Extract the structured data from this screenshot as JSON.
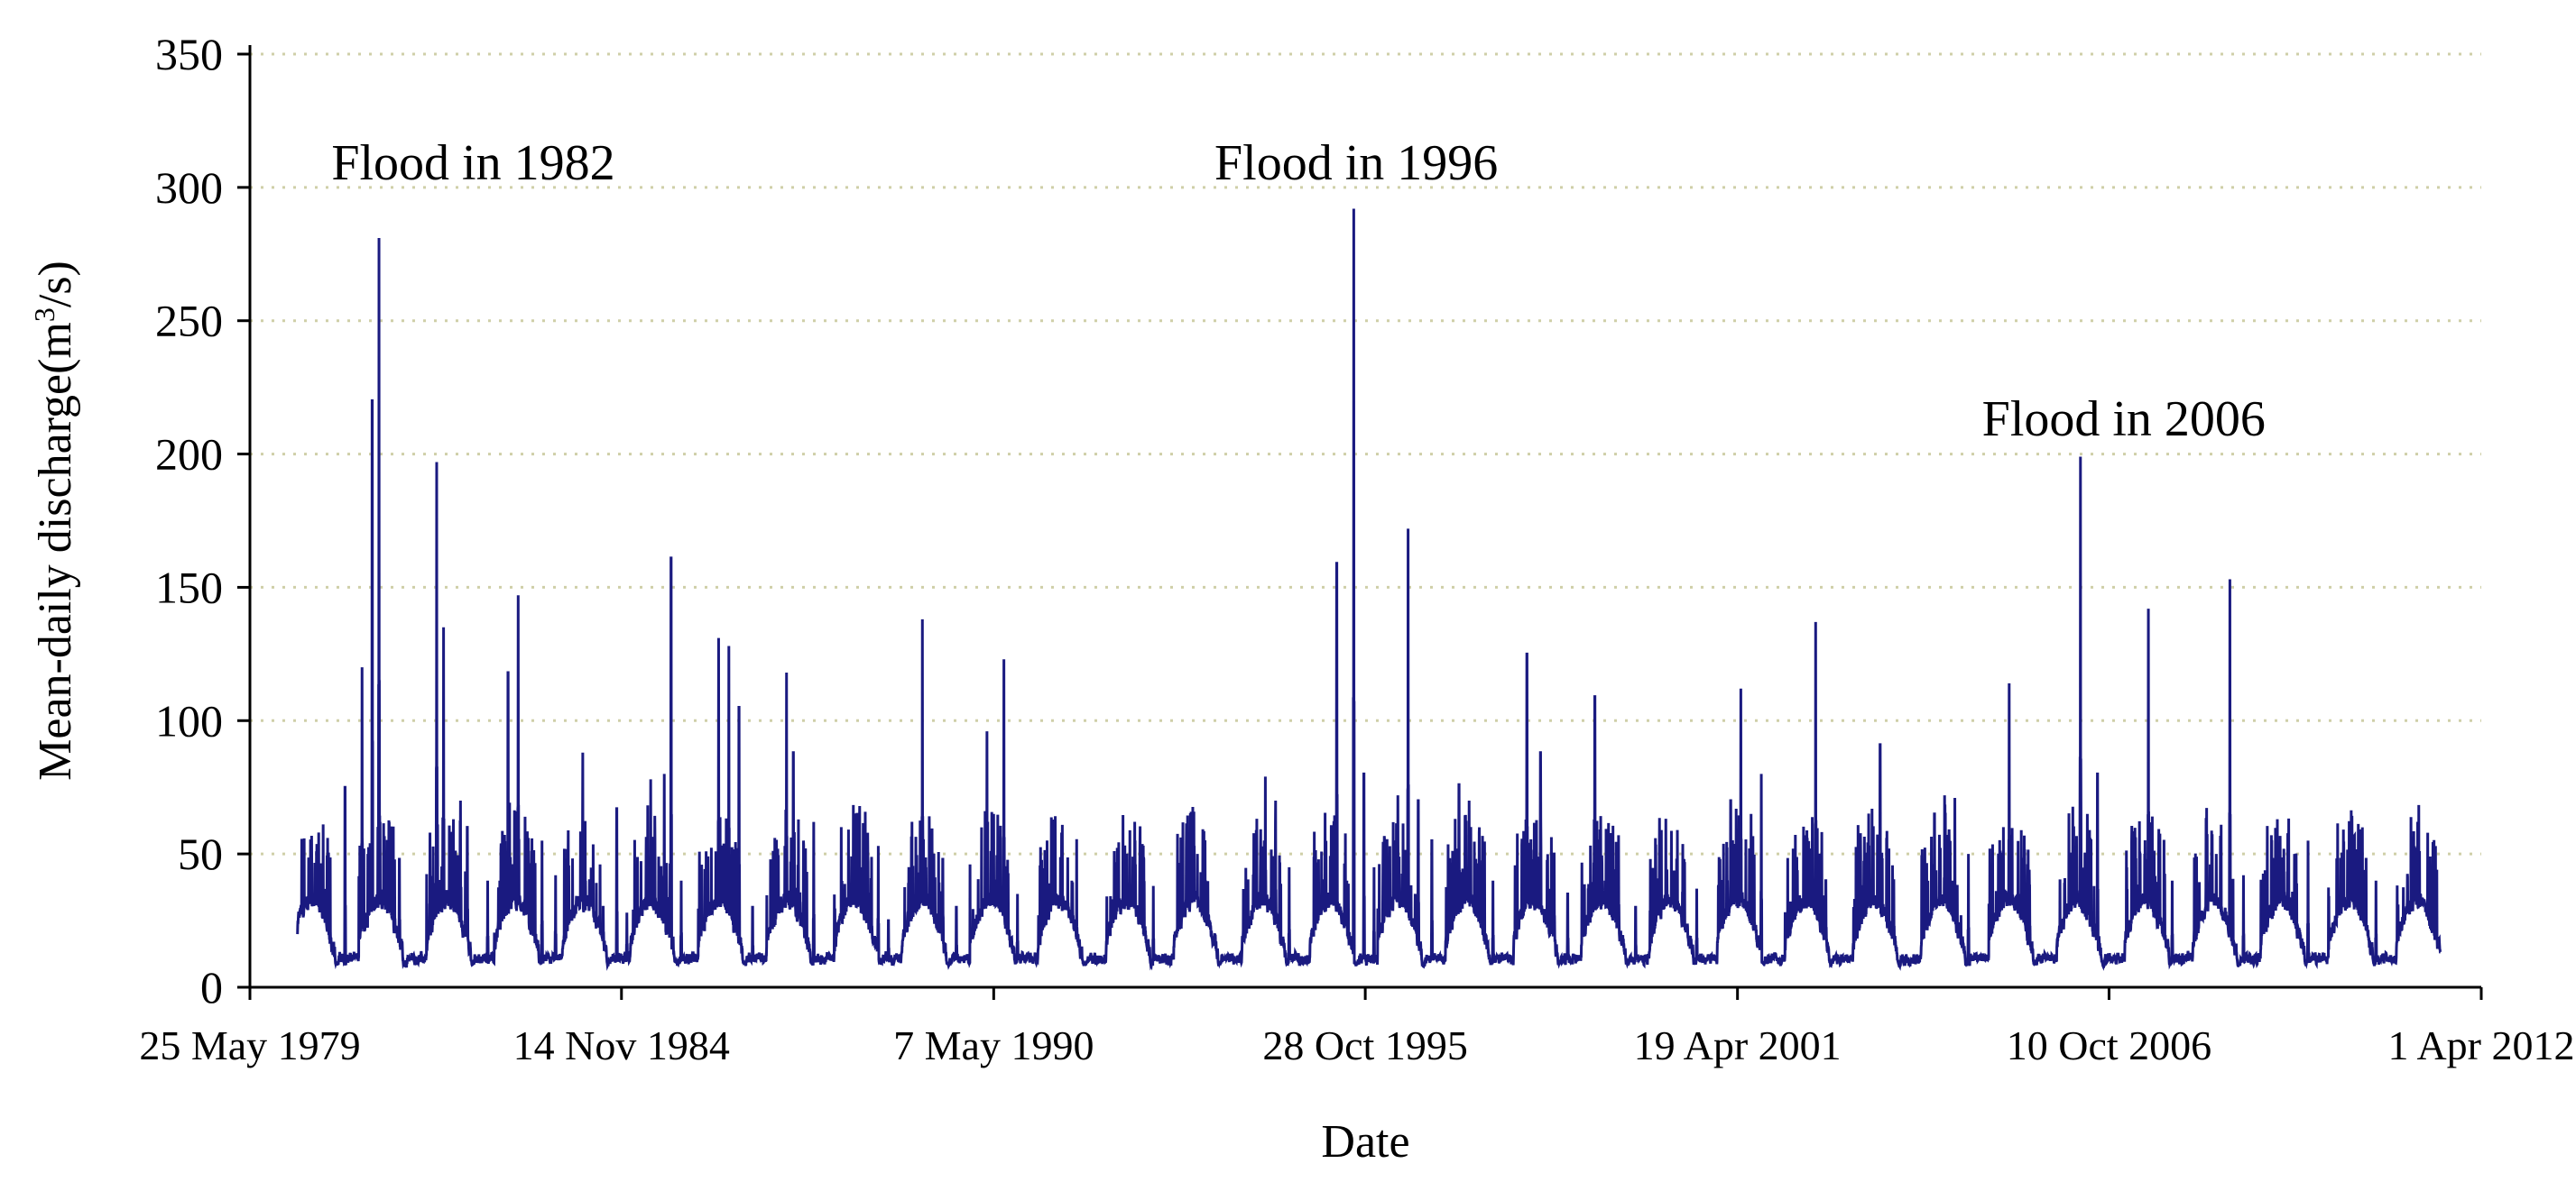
{
  "chart_data": {
    "type": "line",
    "title": "",
    "xlabel": "Date",
    "ylabel": "Mean-daily discharge(m³/s)",
    "ylabel_parts": {
      "main": "Mean-daily discharge(m",
      "sup": "3",
      "end": "/s)"
    },
    "ylim": [
      0,
      350
    ],
    "yticks": [
      0,
      50,
      100,
      150,
      200,
      250,
      300,
      350
    ],
    "xlim_years": [
      1979.4,
      2012.25
    ],
    "xticks": [
      {
        "year": 1979.4,
        "label": "25 May 1979"
      },
      {
        "year": 1984.87,
        "label": "14 Nov 1984"
      },
      {
        "year": 1990.35,
        "label": "7 May 1990"
      },
      {
        "year": 1995.82,
        "label": "28 Oct 1995"
      },
      {
        "year": 2001.3,
        "label": "19 Apr 2001"
      },
      {
        "year": 2006.77,
        "label": "10 Oct 2006"
      },
      {
        "year": 2012.25,
        "label": "1 Apr 2012"
      }
    ],
    "grid": "horizontal dotted",
    "line_color": "#1a1a80",
    "annotations": [
      {
        "text": "Flood in 1982",
        "year": 1980.6,
        "y": 303
      },
      {
        "text": "Flood in 1996",
        "year": 1993.6,
        "y": 303
      },
      {
        "text": "Flood in 2006",
        "year": 2004.9,
        "y": 207
      }
    ],
    "series": [
      {
        "name": "Mean-daily discharge",
        "data_start_year": 1980.1,
        "data_end_year": 2011.65,
        "peaks": [
          [
            1980.5,
            36
          ],
          [
            1980.8,
            75
          ],
          [
            1981.05,
            120
          ],
          [
            1981.2,
            220
          ],
          [
            1981.3,
            281
          ],
          [
            1981.45,
            62
          ],
          [
            1981.6,
            48
          ],
          [
            1982.05,
            58
          ],
          [
            1982.15,
            197
          ],
          [
            1982.25,
            135
          ],
          [
            1982.5,
            70
          ],
          [
            1982.6,
            60
          ],
          [
            1982.9,
            40
          ],
          [
            1983.0,
            20
          ],
          [
            1983.2,
            118
          ],
          [
            1983.35,
            147
          ],
          [
            1983.5,
            56
          ],
          [
            1983.7,
            55
          ],
          [
            1983.9,
            42
          ],
          [
            1984.3,
            88
          ],
          [
            1984.4,
            40
          ],
          [
            1984.6,
            30
          ],
          [
            1984.8,
            67
          ],
          [
            1984.95,
            28
          ],
          [
            1985.3,
            78
          ],
          [
            1985.5,
            80
          ],
          [
            1985.6,
            161
          ],
          [
            1985.75,
            40
          ],
          [
            1986.3,
            131
          ],
          [
            1986.45,
            128
          ],
          [
            1986.6,
            105
          ],
          [
            1986.8,
            30
          ],
          [
            1987.3,
            118
          ],
          [
            1987.4,
            88
          ],
          [
            1987.55,
            55
          ],
          [
            1987.7,
            62
          ],
          [
            1988.3,
            50
          ],
          [
            1988.5,
            47
          ],
          [
            1988.65,
            53
          ],
          [
            1988.8,
            25
          ],
          [
            1989.3,
            138
          ],
          [
            1989.45,
            40
          ],
          [
            1989.6,
            48
          ],
          [
            1989.8,
            30
          ],
          [
            1990.25,
            96
          ],
          [
            1990.35,
            65
          ],
          [
            1990.5,
            123
          ],
          [
            1990.7,
            35
          ],
          [
            1991.2,
            60
          ],
          [
            1991.35,
            58
          ],
          [
            1991.5,
            40
          ],
          [
            1992.1,
            33
          ],
          [
            1992.3,
            30
          ],
          [
            1992.5,
            45
          ],
          [
            1992.7,
            38
          ],
          [
            1993.2,
            40
          ],
          [
            1993.35,
            50
          ],
          [
            1993.5,
            30
          ],
          [
            1994.2,
            48
          ],
          [
            1994.35,
            79
          ],
          [
            1994.5,
            70
          ],
          [
            1994.7,
            45
          ],
          [
            1995.2,
            40
          ],
          [
            1995.4,
            159
          ],
          [
            1995.55,
            40
          ],
          [
            1995.65,
            292
          ],
          [
            1995.8,
            80
          ],
          [
            1995.95,
            45
          ],
          [
            1996.3,
            72
          ],
          [
            1996.45,
            172
          ],
          [
            1996.6,
            70
          ],
          [
            1996.8,
            55
          ],
          [
            1997.2,
            76
          ],
          [
            1997.35,
            70
          ],
          [
            1997.5,
            60
          ],
          [
            1997.7,
            40
          ],
          [
            1998.2,
            125
          ],
          [
            1998.4,
            88
          ],
          [
            1998.6,
            50
          ],
          [
            1998.8,
            35
          ],
          [
            1999.2,
            109
          ],
          [
            1999.35,
            40
          ],
          [
            1999.55,
            57
          ],
          [
            1999.8,
            30
          ],
          [
            2000.3,
            26
          ],
          [
            2000.5,
            30
          ],
          [
            2000.7,
            37
          ],
          [
            2001.2,
            70
          ],
          [
            2001.35,
            112
          ],
          [
            2001.5,
            65
          ],
          [
            2001.65,
            80
          ],
          [
            2002.1,
            30
          ],
          [
            2002.3,
            57
          ],
          [
            2002.45,
            137
          ],
          [
            2002.6,
            40
          ],
          [
            2003.2,
            50
          ],
          [
            2003.4,
            91
          ],
          [
            2003.6,
            40
          ],
          [
            2004.2,
            65
          ],
          [
            2004.35,
            72
          ],
          [
            2004.5,
            71
          ],
          [
            2004.7,
            50
          ],
          [
            2005.2,
            50
          ],
          [
            2005.3,
            114
          ],
          [
            2005.45,
            35
          ],
          [
            2005.6,
            38
          ],
          [
            2006.2,
            50
          ],
          [
            2006.35,
            199
          ],
          [
            2006.45,
            65
          ],
          [
            2006.6,
            80
          ],
          [
            2007.2,
            38
          ],
          [
            2007.35,
            142
          ],
          [
            2007.5,
            50
          ],
          [
            2007.7,
            40
          ],
          [
            2008.2,
            63
          ],
          [
            2008.35,
            50
          ],
          [
            2008.55,
            153
          ],
          [
            2008.75,
            42
          ],
          [
            2009.1,
            25
          ],
          [
            2009.3,
            40
          ],
          [
            2009.5,
            50
          ],
          [
            2009.7,
            55
          ],
          [
            2010.2,
            50
          ],
          [
            2010.35,
            52
          ],
          [
            2010.5,
            60
          ],
          [
            2010.7,
            40
          ],
          [
            2011.2,
            30
          ],
          [
            2011.5,
            22
          ]
        ]
      }
    ]
  }
}
